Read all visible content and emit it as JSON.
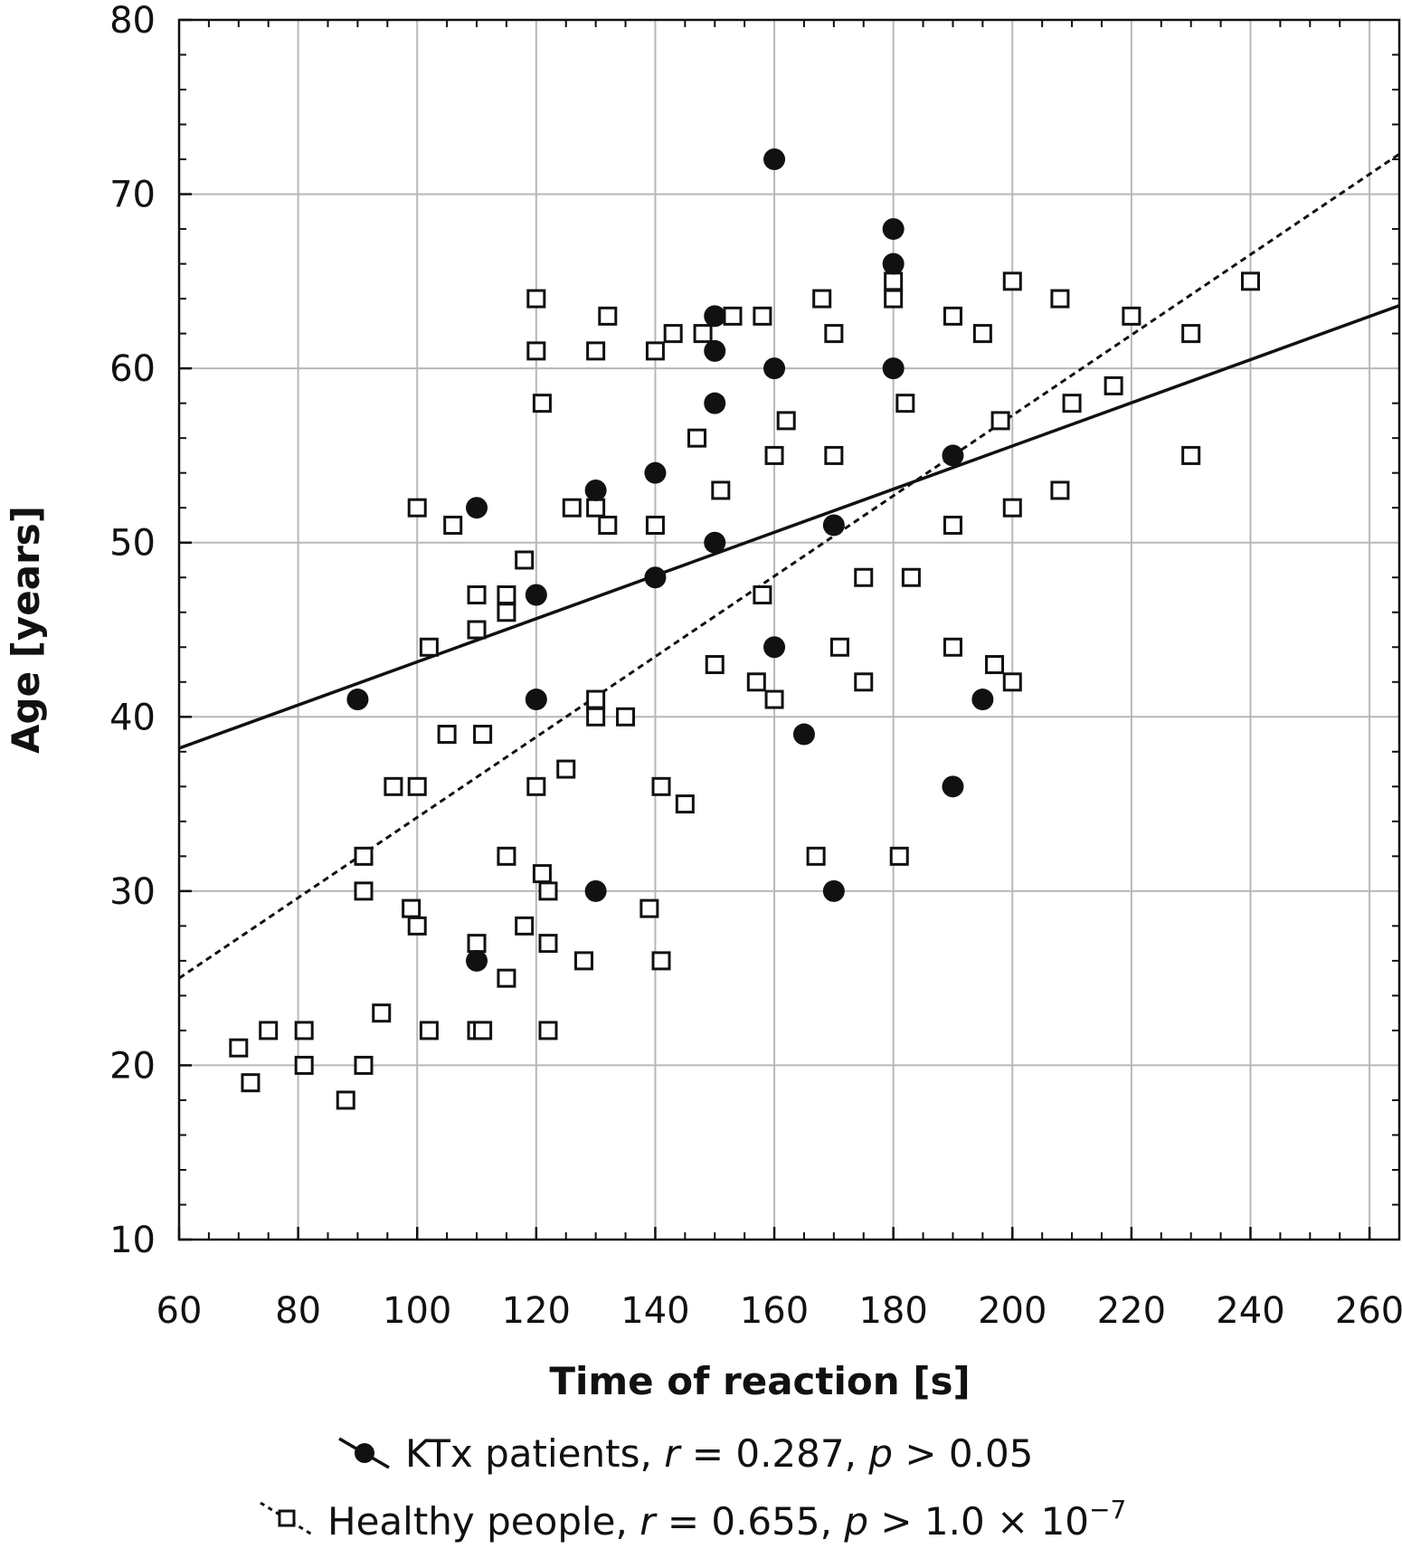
{
  "chart_data": {
    "type": "scatter",
    "xlabel": "Time of reaction [s]",
    "ylabel": "Age [years]",
    "xlim": [
      60,
      265
    ],
    "ylim": [
      10,
      80
    ],
    "x_ticks": [
      60,
      80,
      100,
      120,
      140,
      160,
      180,
      200,
      220,
      240,
      260
    ],
    "y_ticks": [
      10,
      20,
      30,
      40,
      50,
      60,
      70,
      80
    ],
    "grid": true,
    "legend_position": "bottom",
    "series": [
      {
        "name": "KTx patients",
        "legend_name": "KTx patients, ",
        "legend_r_label": "r",
        "legend_r_value": " = 0.287, ",
        "legend_p_label": "p",
        "legend_p_value": " > 0.05",
        "marker": "filled-circle",
        "trend_line": "solid",
        "trend_x": [
          60,
          265
        ],
        "trend_y": [
          38.2,
          63.6
        ],
        "points": [
          {
            "x": 90,
            "y": 41
          },
          {
            "x": 110,
            "y": 52
          },
          {
            "x": 110,
            "y": 26
          },
          {
            "x": 120,
            "y": 47
          },
          {
            "x": 120,
            "y": 41
          },
          {
            "x": 130,
            "y": 53
          },
          {
            "x": 130,
            "y": 30
          },
          {
            "x": 140,
            "y": 54
          },
          {
            "x": 140,
            "y": 48
          },
          {
            "x": 150,
            "y": 63
          },
          {
            "x": 150,
            "y": 61
          },
          {
            "x": 150,
            "y": 58
          },
          {
            "x": 150,
            "y": 50
          },
          {
            "x": 160,
            "y": 72
          },
          {
            "x": 160,
            "y": 60
          },
          {
            "x": 160,
            "y": 44
          },
          {
            "x": 165,
            "y": 39
          },
          {
            "x": 170,
            "y": 51
          },
          {
            "x": 170,
            "y": 30
          },
          {
            "x": 180,
            "y": 68
          },
          {
            "x": 180,
            "y": 66
          },
          {
            "x": 180,
            "y": 60
          },
          {
            "x": 190,
            "y": 55
          },
          {
            "x": 190,
            "y": 36
          },
          {
            "x": 195,
            "y": 41
          }
        ]
      },
      {
        "name": "Healthy people",
        "legend_name": "Healthy people, ",
        "legend_r_label": "r",
        "legend_r_value": " = 0.655, ",
        "legend_p_label": "p",
        "legend_p_value": " > 1.0 × 10",
        "legend_p_exponent": "−7",
        "marker": "open-square",
        "trend_line": "dotted",
        "trend_x": [
          60,
          265
        ],
        "trend_y": [
          25,
          72.3
        ],
        "points": [
          {
            "x": 70,
            "y": 21
          },
          {
            "x": 72,
            "y": 19
          },
          {
            "x": 75,
            "y": 22
          },
          {
            "x": 81,
            "y": 22
          },
          {
            "x": 81,
            "y": 20
          },
          {
            "x": 88,
            "y": 18
          },
          {
            "x": 91,
            "y": 20
          },
          {
            "x": 91,
            "y": 32
          },
          {
            "x": 91,
            "y": 30
          },
          {
            "x": 94,
            "y": 23
          },
          {
            "x": 96,
            "y": 36
          },
          {
            "x": 99,
            "y": 29
          },
          {
            "x": 100,
            "y": 36
          },
          {
            "x": 100,
            "y": 28
          },
          {
            "x": 100,
            "y": 52
          },
          {
            "x": 102,
            "y": 22
          },
          {
            "x": 102,
            "y": 44
          },
          {
            "x": 105,
            "y": 39
          },
          {
            "x": 106,
            "y": 51
          },
          {
            "x": 110,
            "y": 47
          },
          {
            "x": 110,
            "y": 45
          },
          {
            "x": 110,
            "y": 27
          },
          {
            "x": 110,
            "y": 22
          },
          {
            "x": 111,
            "y": 39
          },
          {
            "x": 111,
            "y": 22
          },
          {
            "x": 115,
            "y": 47
          },
          {
            "x": 115,
            "y": 46
          },
          {
            "x": 115,
            "y": 32
          },
          {
            "x": 115,
            "y": 25
          },
          {
            "x": 118,
            "y": 49
          },
          {
            "x": 118,
            "y": 28
          },
          {
            "x": 120,
            "y": 64
          },
          {
            "x": 120,
            "y": 61
          },
          {
            "x": 120,
            "y": 36
          },
          {
            "x": 121,
            "y": 58
          },
          {
            "x": 121,
            "y": 31
          },
          {
            "x": 122,
            "y": 30
          },
          {
            "x": 122,
            "y": 27
          },
          {
            "x": 122,
            "y": 22
          },
          {
            "x": 125,
            "y": 37
          },
          {
            "x": 126,
            "y": 52
          },
          {
            "x": 128,
            "y": 26
          },
          {
            "x": 130,
            "y": 61
          },
          {
            "x": 130,
            "y": 52
          },
          {
            "x": 130,
            "y": 41
          },
          {
            "x": 130,
            "y": 40
          },
          {
            "x": 132,
            "y": 63
          },
          {
            "x": 132,
            "y": 51
          },
          {
            "x": 135,
            "y": 40
          },
          {
            "x": 139,
            "y": 29
          },
          {
            "x": 140,
            "y": 61
          },
          {
            "x": 140,
            "y": 51
          },
          {
            "x": 141,
            "y": 36
          },
          {
            "x": 141,
            "y": 26
          },
          {
            "x": 143,
            "y": 62
          },
          {
            "x": 145,
            "y": 35
          },
          {
            "x": 147,
            "y": 56
          },
          {
            "x": 148,
            "y": 62
          },
          {
            "x": 150,
            "y": 43
          },
          {
            "x": 151,
            "y": 53
          },
          {
            "x": 153,
            "y": 63
          },
          {
            "x": 157,
            "y": 42
          },
          {
            "x": 158,
            "y": 63
          },
          {
            "x": 158,
            "y": 47
          },
          {
            "x": 160,
            "y": 55
          },
          {
            "x": 160,
            "y": 41
          },
          {
            "x": 162,
            "y": 57
          },
          {
            "x": 167,
            "y": 32
          },
          {
            "x": 168,
            "y": 64
          },
          {
            "x": 170,
            "y": 62
          },
          {
            "x": 170,
            "y": 55
          },
          {
            "x": 171,
            "y": 44
          },
          {
            "x": 175,
            "y": 48
          },
          {
            "x": 175,
            "y": 42
          },
          {
            "x": 180,
            "y": 65
          },
          {
            "x": 180,
            "y": 64
          },
          {
            "x": 181,
            "y": 32
          },
          {
            "x": 182,
            "y": 58
          },
          {
            "x": 183,
            "y": 48
          },
          {
            "x": 190,
            "y": 51
          },
          {
            "x": 190,
            "y": 63
          },
          {
            "x": 190,
            "y": 44
          },
          {
            "x": 195,
            "y": 62
          },
          {
            "x": 197,
            "y": 43
          },
          {
            "x": 198,
            "y": 57
          },
          {
            "x": 200,
            "y": 65
          },
          {
            "x": 200,
            "y": 52
          },
          {
            "x": 200,
            "y": 42
          },
          {
            "x": 208,
            "y": 64
          },
          {
            "x": 208,
            "y": 53
          },
          {
            "x": 210,
            "y": 58
          },
          {
            "x": 217,
            "y": 59
          },
          {
            "x": 220,
            "y": 63
          },
          {
            "x": 230,
            "y": 62
          },
          {
            "x": 230,
            "y": 55
          },
          {
            "x": 240,
            "y": 65
          }
        ]
      }
    ]
  }
}
